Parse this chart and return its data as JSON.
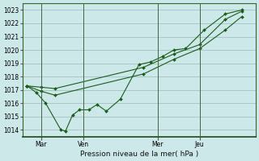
{
  "xlabel": "Pression niveau de la mer( hPa )",
  "bg_color": "#cce8e8",
  "grid_color": "#99bbbb",
  "line_color": "#1a5c1a",
  "ylim": [
    1013.5,
    1023.5
  ],
  "yticks": [
    1014,
    1015,
    1016,
    1017,
    1018,
    1019,
    1020,
    1021,
    1022,
    1023
  ],
  "day_labels": [
    "Mar",
    "Ven",
    "Mer",
    "Jeu"
  ],
  "day_positions": [
    0.08,
    0.26,
    0.58,
    0.76
  ],
  "vline_x": [
    0.08,
    0.26,
    0.58,
    0.76
  ],
  "xlim": [
    0.0,
    1.0
  ],
  "series1_x": [
    0.02,
    0.06,
    0.1,
    0.165,
    0.185,
    0.215,
    0.245,
    0.285,
    0.32,
    0.36,
    0.42,
    0.5,
    0.55,
    0.6,
    0.65,
    0.7,
    0.78,
    0.87,
    0.94
  ],
  "series1_y": [
    1017.3,
    1016.8,
    1016.0,
    1014.0,
    1013.9,
    1015.1,
    1015.5,
    1015.5,
    1015.9,
    1015.4,
    1016.3,
    1018.9,
    1019.1,
    1019.5,
    1020.0,
    1020.1,
    1021.5,
    1022.7,
    1023.0
  ],
  "series2_x": [
    0.02,
    0.08,
    0.14,
    0.52,
    0.65,
    0.76,
    0.87,
    0.94
  ],
  "series2_y": [
    1017.3,
    1017.2,
    1017.1,
    1018.7,
    1019.7,
    1020.4,
    1022.3,
    1022.9
  ],
  "series3_x": [
    0.02,
    0.08,
    0.14,
    0.52,
    0.65,
    0.76,
    0.87,
    0.94
  ],
  "series3_y": [
    1017.3,
    1016.9,
    1016.6,
    1018.2,
    1019.3,
    1020.1,
    1021.5,
    1022.5
  ]
}
